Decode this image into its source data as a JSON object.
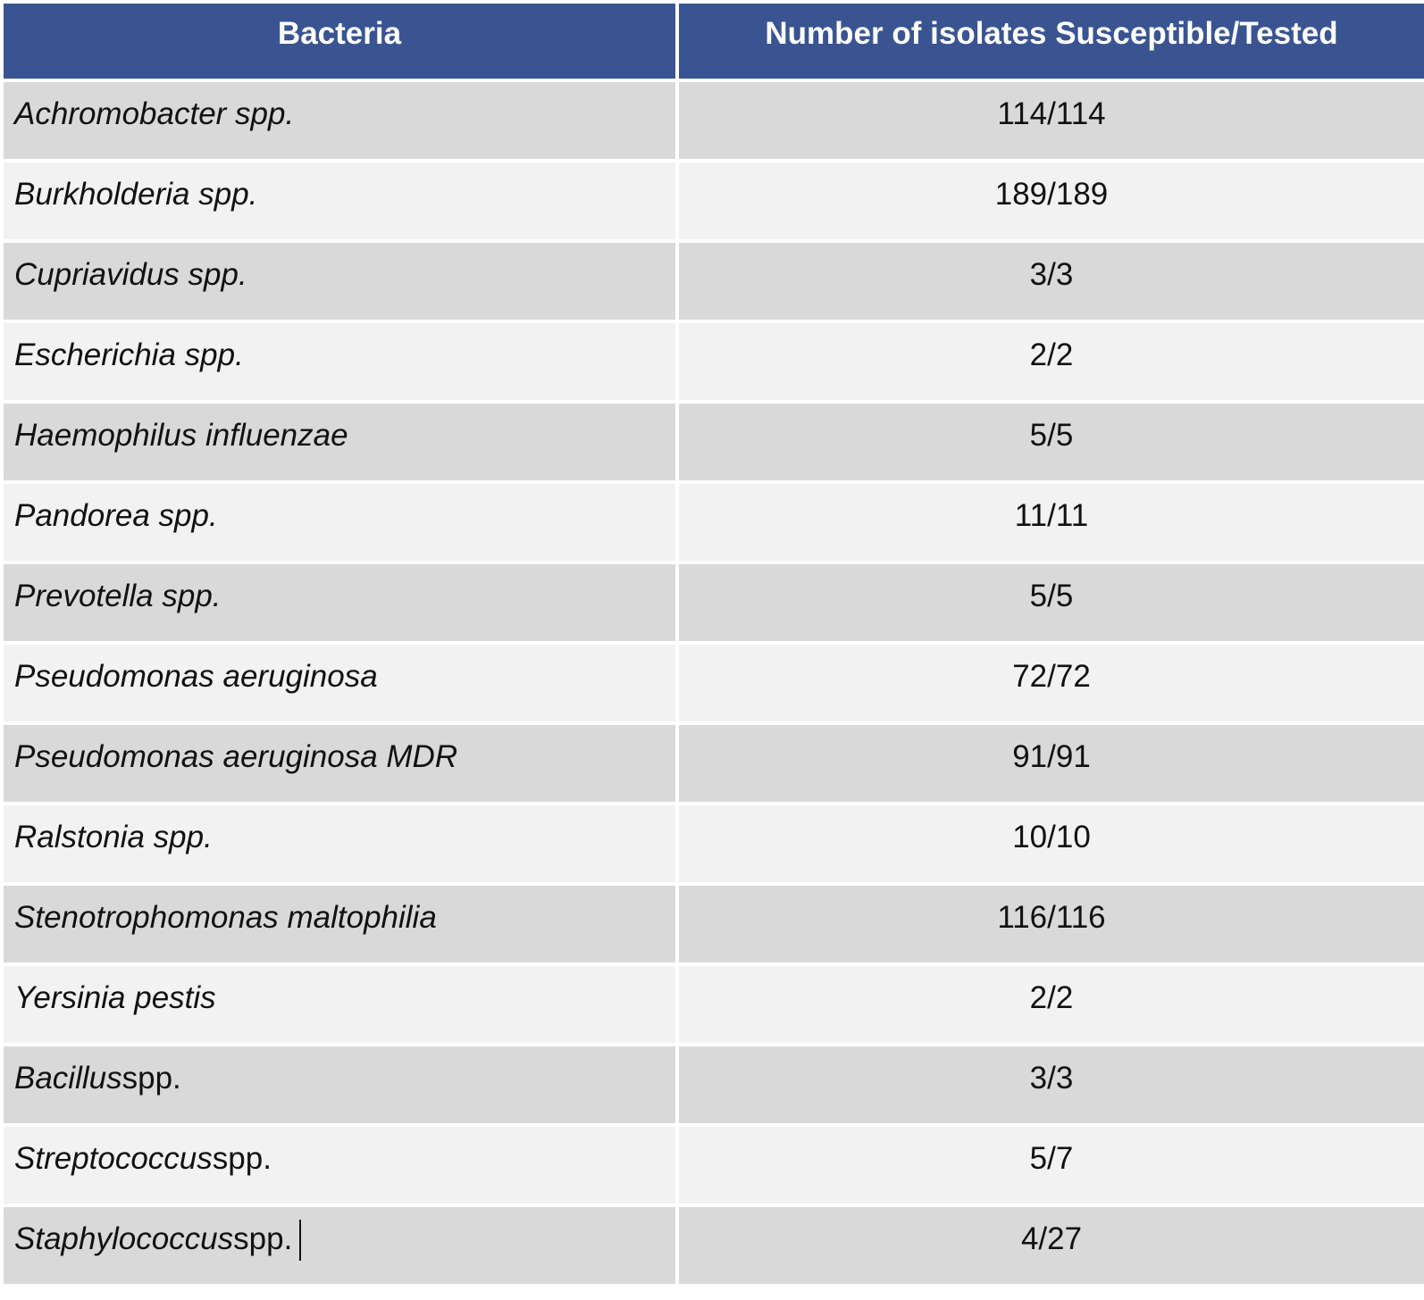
{
  "table": {
    "headers": [
      "Bacteria",
      "Number of isolates Susceptible/Tested"
    ],
    "rows": [
      {
        "italic": "Achromobacter spp.",
        "normal": "",
        "value": "114/114"
      },
      {
        "italic": "Burkholderia spp.",
        "normal": "",
        "value": "189/189"
      },
      {
        "italic": "Cupriavidus spp.",
        "normal": "",
        "value": "3/3"
      },
      {
        "italic": "Escherichia spp.",
        "normal": "",
        "value": "2/2"
      },
      {
        "italic": "Haemophilus influenzae",
        "normal": "",
        "value": "5/5"
      },
      {
        "italic": "Pandorea spp.",
        "normal": "",
        "value": "11/11"
      },
      {
        "italic": "Prevotella spp.",
        "normal": "",
        "value": "5/5"
      },
      {
        "italic": "Pseudomonas aeruginosa",
        "normal": "",
        "value": "72/72"
      },
      {
        "italic": "Pseudomonas aeruginosa MDR",
        "normal": "",
        "value": "91/91"
      },
      {
        "italic": "Ralstonia spp.",
        "normal": "",
        "value": "10/10"
      },
      {
        "italic": "Stenotrophomonas maltophilia",
        "normal": "",
        "value": "116/116"
      },
      {
        "italic": "Yersinia pestis",
        "normal": "",
        "value": "2/2"
      },
      {
        "italic": "Bacillus",
        "normal": " spp.",
        "value": "3/3"
      },
      {
        "italic": "Streptococcus",
        "normal": " spp.",
        "value": "5/7"
      },
      {
        "italic": "Staphylococcus",
        "normal": " spp.",
        "value": "4/27"
      }
    ]
  },
  "colors": {
    "header_bg": "#395491",
    "header_text": "#ffffff",
    "row_dark": "#d9d9d9",
    "row_light": "#f2f2f2"
  }
}
